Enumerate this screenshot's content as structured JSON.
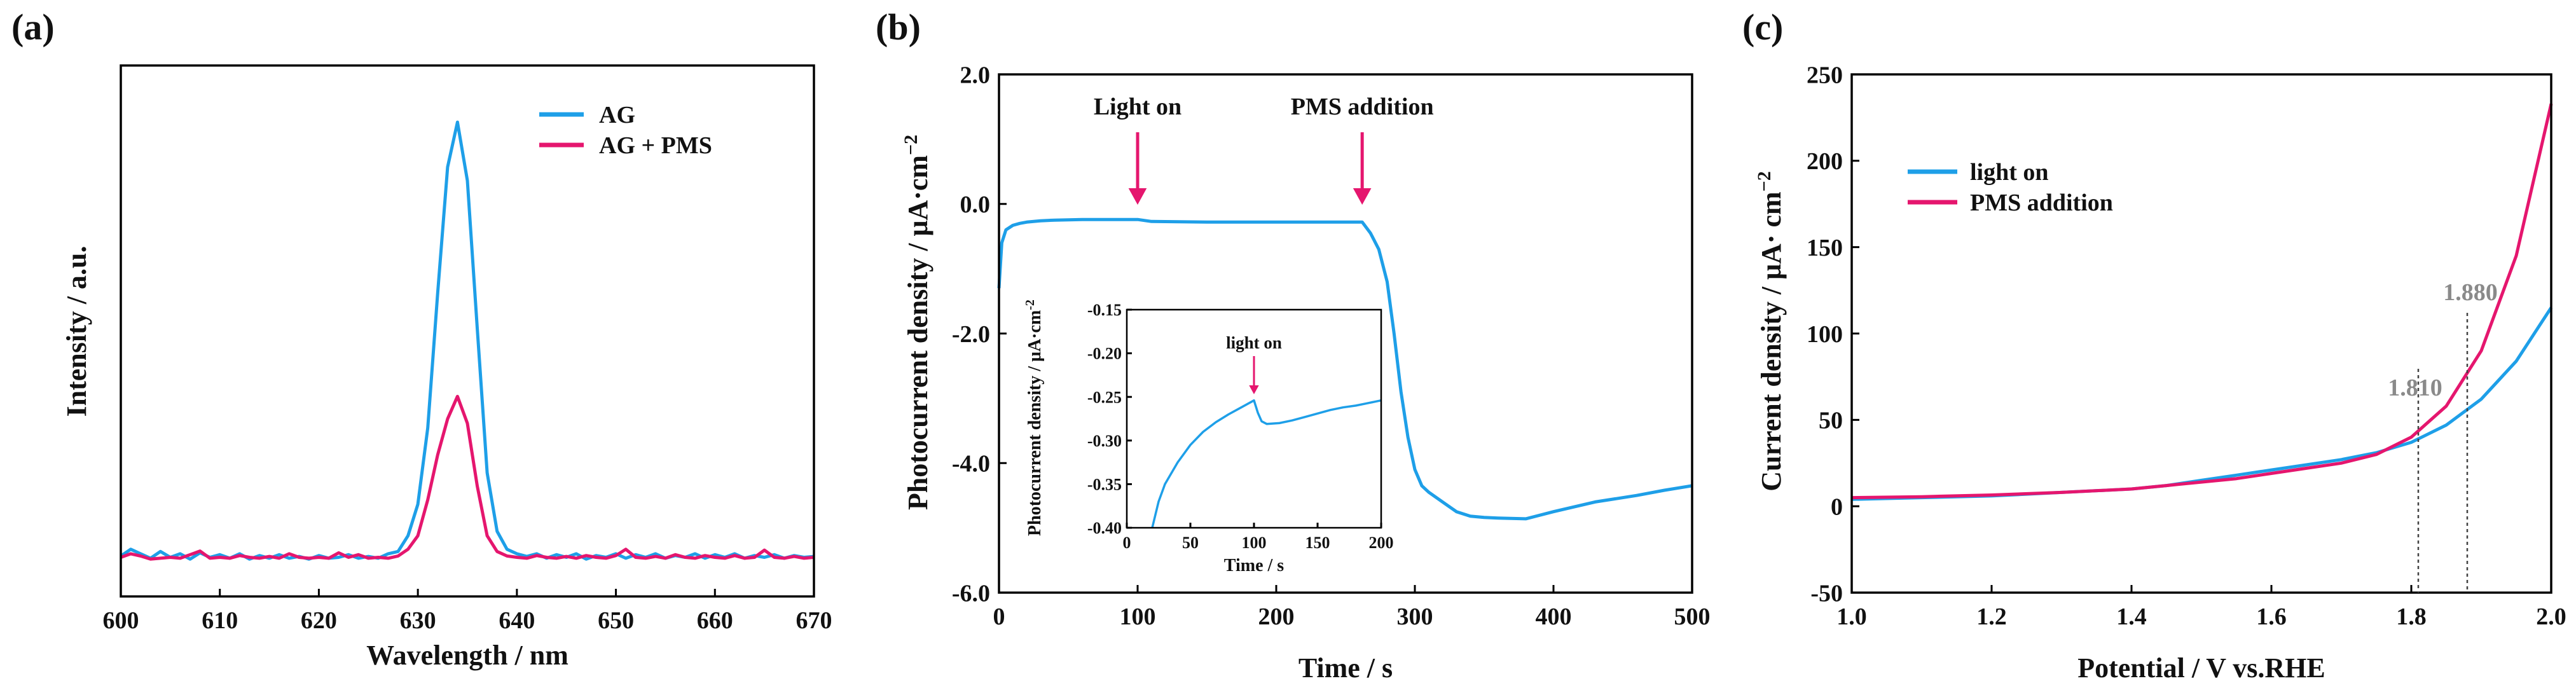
{
  "colors": {
    "blue": "#1E9FE8",
    "magenta": "#E5166E",
    "gray": "#8a8a8a"
  },
  "chart_data": [
    {
      "panel": "(a)",
      "type": "line",
      "title": "",
      "xlabel": "Wavelength / nm",
      "ylabel": "Intensity / a.u.",
      "xlim": [
        600,
        670
      ],
      "ylim": [
        0,
        1
      ],
      "xticks": [
        600,
        610,
        620,
        630,
        640,
        650,
        660,
        670
      ],
      "yticks": [],
      "legend": {
        "position": "top-right"
      },
      "series": [
        {
          "name": "AG",
          "color": "#1E9FE8",
          "x": [
            600,
            601,
            602,
            603,
            604,
            605,
            606,
            607,
            608,
            609,
            610,
            611,
            612,
            613,
            614,
            615,
            616,
            617,
            618,
            619,
            620,
            621,
            622,
            623,
            624,
            625,
            626,
            627,
            628,
            629,
            630,
            631,
            632,
            633,
            634,
            635,
            636,
            637,
            638,
            639,
            640,
            641,
            642,
            643,
            644,
            645,
            646,
            647,
            648,
            649,
            650,
            651,
            652,
            653,
            654,
            655,
            656,
            657,
            658,
            659,
            660,
            661,
            662,
            663,
            664,
            665,
            666,
            667,
            668,
            669,
            670
          ],
          "y": [
            0.015,
            0.03,
            0.02,
            0.01,
            0.025,
            0.012,
            0.02,
            0.008,
            0.022,
            0.012,
            0.018,
            0.01,
            0.02,
            0.008,
            0.016,
            0.01,
            0.018,
            0.01,
            0.014,
            0.008,
            0.016,
            0.01,
            0.012,
            0.018,
            0.01,
            0.014,
            0.01,
            0.02,
            0.025,
            0.06,
            0.13,
            0.3,
            0.6,
            0.88,
            0.98,
            0.85,
            0.52,
            0.2,
            0.07,
            0.03,
            0.02,
            0.014,
            0.02,
            0.01,
            0.018,
            0.012,
            0.02,
            0.008,
            0.016,
            0.012,
            0.02,
            0.01,
            0.018,
            0.012,
            0.02,
            0.01,
            0.016,
            0.012,
            0.02,
            0.01,
            0.018,
            0.012,
            0.02,
            0.01,
            0.016,
            0.012,
            0.018,
            0.01,
            0.016,
            0.012,
            0.014
          ]
        },
        {
          "name": "AG + PMS",
          "color": "#E5166E",
          "x": [
            600,
            601,
            602,
            603,
            604,
            605,
            606,
            607,
            608,
            609,
            610,
            611,
            612,
            613,
            614,
            615,
            616,
            617,
            618,
            619,
            620,
            621,
            622,
            623,
            624,
            625,
            626,
            627,
            628,
            629,
            630,
            631,
            632,
            633,
            634,
            635,
            636,
            637,
            638,
            639,
            640,
            641,
            642,
            643,
            644,
            645,
            646,
            647,
            648,
            649,
            650,
            651,
            652,
            653,
            654,
            655,
            656,
            657,
            658,
            659,
            660,
            661,
            662,
            663,
            664,
            665,
            666,
            667,
            668,
            669,
            670
          ],
          "y": [
            0.012,
            0.02,
            0.015,
            0.008,
            0.01,
            0.012,
            0.01,
            0.018,
            0.026,
            0.01,
            0.012,
            0.01,
            0.016,
            0.012,
            0.01,
            0.014,
            0.01,
            0.02,
            0.012,
            0.01,
            0.012,
            0.01,
            0.022,
            0.012,
            0.018,
            0.01,
            0.012,
            0.01,
            0.015,
            0.03,
            0.06,
            0.14,
            0.24,
            0.32,
            0.37,
            0.31,
            0.17,
            0.06,
            0.025,
            0.015,
            0.012,
            0.01,
            0.016,
            0.012,
            0.01,
            0.014,
            0.01,
            0.016,
            0.012,
            0.01,
            0.016,
            0.03,
            0.012,
            0.01,
            0.014,
            0.01,
            0.018,
            0.012,
            0.01,
            0.016,
            0.012,
            0.01,
            0.016,
            0.01,
            0.012,
            0.028,
            0.012,
            0.01,
            0.014,
            0.01,
            0.012
          ]
        }
      ]
    },
    {
      "panel": "(b)",
      "type": "line",
      "title": "",
      "xlabel": "Time / s",
      "ylabel": "Photocurrent density / μA·cm",
      "ylabel_sup": "−2",
      "xlim": [
        0,
        500
      ],
      "ylim": [
        -6,
        2
      ],
      "xticks": [
        0,
        100,
        200,
        300,
        400,
        500
      ],
      "xtick_labels": [
        "0",
        "100",
        "200",
        "300",
        "400",
        "500"
      ],
      "yticks": [
        -6,
        -4,
        -2,
        0,
        2
      ],
      "ytick_labels": [
        "-6.0",
        "-4.0",
        "-2.0",
        "0.0",
        "2.0"
      ],
      "annotations": [
        {
          "text": "Light on",
          "x": 100
        },
        {
          "text": "PMS addition",
          "x": 262
        }
      ],
      "series": [
        {
          "name": "photocurrent",
          "color": "#1E9FE8",
          "x": [
            0,
            2,
            5,
            10,
            15,
            20,
            30,
            40,
            60,
            80,
            100,
            110,
            150,
            200,
            240,
            262,
            268,
            274,
            280,
            285,
            290,
            295,
            300,
            305,
            310,
            320,
            330,
            340,
            350,
            360,
            380,
            400,
            430,
            460,
            480,
            500
          ],
          "y": [
            -1.3,
            -0.6,
            -0.4,
            -0.33,
            -0.3,
            -0.28,
            -0.26,
            -0.25,
            -0.24,
            -0.24,
            -0.24,
            -0.27,
            -0.28,
            -0.28,
            -0.28,
            -0.28,
            -0.45,
            -0.7,
            -1.2,
            -2.0,
            -2.9,
            -3.6,
            -4.1,
            -4.35,
            -4.45,
            -4.6,
            -4.75,
            -4.82,
            -4.84,
            -4.85,
            -4.86,
            -4.75,
            -4.6,
            -4.5,
            -4.42,
            -4.35
          ]
        }
      ],
      "inset": {
        "xlabel": "Time / s",
        "ylabel": "Photocurrent density / μA·cm",
        "ylabel_sup": "-2",
        "xlim": [
          0,
          200
        ],
        "ylim": [
          -0.4,
          -0.15
        ],
        "xticks": [
          0,
          50,
          100,
          150,
          200
        ],
        "xtick_labels": [
          "0",
          "50",
          "100",
          "150",
          "200"
        ],
        "yticks": [
          -0.4,
          -0.35,
          -0.3,
          -0.25,
          -0.2,
          -0.15
        ],
        "ytick_labels": [
          "-0.40",
          "-0.35",
          "-0.30",
          "-0.25",
          "-0.20",
          "-0.15"
        ],
        "annotation": {
          "text": "light on",
          "x": 100
        },
        "series": [
          {
            "name": "inset",
            "color": "#1E9FE8",
            "x": [
              20,
              25,
              30,
              40,
              50,
              60,
              70,
              80,
              90,
              100,
              103,
              106,
              110,
              120,
              130,
              140,
              150,
              160,
              170,
              180,
              190,
              200
            ],
            "y": [
              -0.4,
              -0.37,
              -0.35,
              -0.325,
              -0.305,
              -0.29,
              -0.279,
              -0.27,
              -0.262,
              -0.254,
              -0.268,
              -0.278,
              -0.281,
              -0.28,
              -0.277,
              -0.273,
              -0.269,
              -0.265,
              -0.262,
              -0.26,
              -0.257,
              -0.254
            ]
          }
        ]
      }
    },
    {
      "panel": "(c)",
      "type": "line",
      "title": "",
      "xlabel": "Potential / V vs.RHE",
      "ylabel": "Current density / μA· cm",
      "ylabel_sup": "−2",
      "xlim": [
        1.0,
        2.0
      ],
      "ylim": [
        -50,
        250
      ],
      "xticks": [
        1.0,
        1.2,
        1.4,
        1.6,
        1.8,
        2.0
      ],
      "xtick_labels": [
        "1.0",
        "1.2",
        "1.4",
        "1.6",
        "1.8",
        "2.0"
      ],
      "yticks": [
        -50,
        0,
        50,
        100,
        150,
        200,
        250
      ],
      "ytick_labels": [
        "-50",
        "0",
        "50",
        "100",
        "150",
        "200",
        "250"
      ],
      "legend": {
        "position": "top-left"
      },
      "annotations": [
        {
          "text": "1.810",
          "x": 1.81
        },
        {
          "text": "1.880",
          "x": 1.88
        }
      ],
      "series": [
        {
          "name": "light on",
          "color": "#1E9FE8",
          "x": [
            1.0,
            1.1,
            1.2,
            1.3,
            1.4,
            1.45,
            1.5,
            1.55,
            1.6,
            1.65,
            1.7,
            1.75,
            1.8,
            1.85,
            1.9,
            1.95,
            2.0
          ],
          "y": [
            4,
            5,
            6,
            8,
            10,
            12,
            15,
            18,
            21,
            24,
            27,
            31,
            37,
            47,
            62,
            84,
            115
          ]
        },
        {
          "name": "PMS addition",
          "color": "#E5166E",
          "x": [
            1.0,
            1.1,
            1.2,
            1.3,
            1.4,
            1.45,
            1.5,
            1.55,
            1.6,
            1.65,
            1.7,
            1.75,
            1.8,
            1.85,
            1.9,
            1.95,
            2.0
          ],
          "y": [
            5,
            5.5,
            6.5,
            8,
            10,
            12,
            14,
            16,
            19,
            22,
            25,
            30,
            40,
            58,
            90,
            145,
            233
          ]
        }
      ]
    }
  ]
}
